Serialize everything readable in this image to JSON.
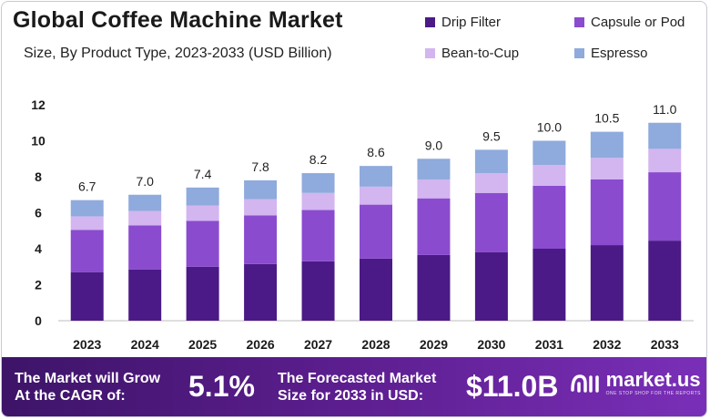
{
  "chart_data": {
    "type": "bar",
    "stacked": true,
    "title": "Global Coffee Machine Market",
    "subtitle": "Size, By Product Type, 2023-2033 (USD Billion)",
    "categories": [
      "2023",
      "2024",
      "2025",
      "2026",
      "2027",
      "2028",
      "2029",
      "2030",
      "2031",
      "2032",
      "2033"
    ],
    "series": [
      {
        "name": "Drip Filter",
        "color": "#4b1a86",
        "values": [
          2.7,
          2.85,
          3.0,
          3.15,
          3.3,
          3.45,
          3.65,
          3.8,
          4.0,
          4.2,
          4.45
        ]
      },
      {
        "name": "Capsule or Pod",
        "color": "#8a4bcf",
        "values": [
          2.35,
          2.45,
          2.55,
          2.7,
          2.85,
          3.0,
          3.15,
          3.3,
          3.5,
          3.65,
          3.8
        ]
      },
      {
        "name": "Bean-to-Cup",
        "color": "#d3b5f0",
        "values": [
          0.75,
          0.8,
          0.85,
          0.9,
          0.95,
          1.0,
          1.05,
          1.1,
          1.15,
          1.2,
          1.3
        ]
      },
      {
        "name": "Espresso",
        "color": "#8faadc",
        "values": [
          0.9,
          0.9,
          1.0,
          1.05,
          1.1,
          1.15,
          1.15,
          1.3,
          1.35,
          1.45,
          1.45
        ]
      }
    ],
    "totals": [
      "6.7",
      "7.0",
      "7.4",
      "7.8",
      "8.2",
      "8.6",
      "9.0",
      "9.5",
      "10.0",
      "10.5",
      "11.0"
    ],
    "ylim": [
      0,
      12
    ],
    "yticks": [
      0,
      2,
      4,
      6,
      8,
      10,
      12
    ],
    "legend_position": "top-right",
    "grid": false
  },
  "banner": {
    "cagr_label_line1": "The Market will Grow",
    "cagr_label_line2": "At the CAGR of:",
    "cagr_value": "5.1%",
    "forecast_label_line1": "The Forecasted Market",
    "forecast_label_line2": "Size for 2033 in USD:",
    "forecast_value": "$11.0B",
    "brand_name": "market.us",
    "brand_tagline": "ONE STOP SHOP FOR THE REPORTS"
  }
}
